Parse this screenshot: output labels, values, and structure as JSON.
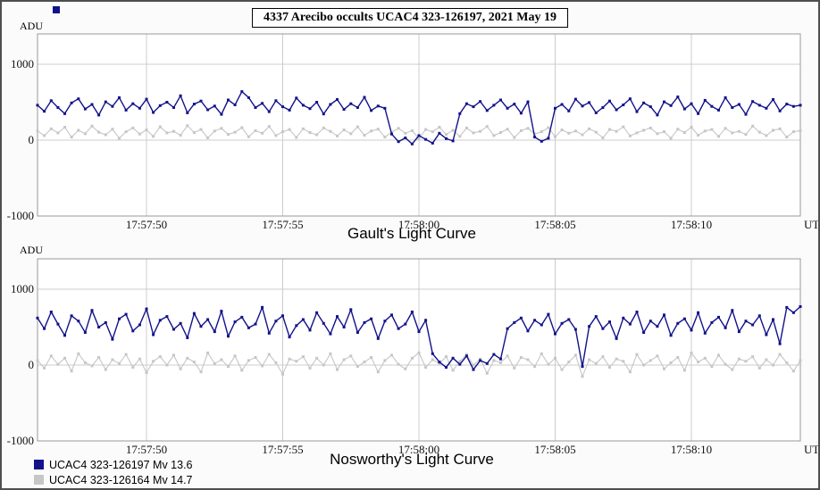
{
  "header": {
    "title": "4337 Arecibo occults UCAC4 323-126197, 2021 May 19"
  },
  "axis": {
    "y_label": "ADU",
    "x_unit": "UT",
    "y_ticks": [
      -1000,
      0,
      1000
    ],
    "x_tick_seconds": [
      4,
      9,
      14,
      19,
      24
    ],
    "x_tick_labels": [
      "17:57:50",
      "17:57:55",
      "17:58:00",
      "17:58:05",
      "17:58:10"
    ]
  },
  "legend": [
    {
      "label": "UCAC4 323-126197 Mv 13.6",
      "color": "#12128a"
    },
    {
      "label": "UCAC4 323-126164 Mv 14.7",
      "color": "#c6c6c6"
    }
  ],
  "chart_data": [
    {
      "type": "line",
      "title": "Gault's Light Curve",
      "xlabel": "UT",
      "ylabel": "ADU",
      "x_start_time": "17:57:46",
      "dt_seconds": 0.25,
      "x_range_seconds": [
        0,
        28
      ],
      "ylim": [
        -1000,
        1400
      ],
      "grid": true,
      "series": [
        {
          "name": "UCAC4 323-126197",
          "color": "#12128a",
          "values": [
            460,
            380,
            520,
            430,
            350,
            490,
            545,
            410,
            470,
            330,
            505,
            445,
            560,
            395,
            480,
            420,
            540,
            365,
            455,
            500,
            430,
            585,
            360,
            475,
            515,
            400,
            450,
            340,
            530,
            465,
            640,
            560,
            430,
            485,
            375,
            520,
            440,
            395,
            555,
            460,
            415,
            500,
            345,
            470,
            535,
            405,
            480,
            430,
            565,
            390,
            450,
            420,
            80,
            -20,
            30,
            -50,
            60,
            10,
            -40,
            90,
            20,
            -10,
            350,
            480,
            440,
            510,
            390,
            460,
            530,
            420,
            475,
            355,
            505,
            40,
            -15,
            25,
            420,
            470,
            385,
            540,
            450,
            495,
            360,
            430,
            515,
            400,
            465,
            545,
            375,
            490,
            440,
            330,
            505,
            455,
            570,
            410,
            480,
            350,
            525,
            445,
            395,
            560,
            430,
            470,
            340,
            510,
            460,
            420,
            535,
            385,
            475,
            445,
            460
          ]
        },
        {
          "name": "UCAC4 323-126164",
          "color": "#c6c6c6",
          "values": [
            120,
            60,
            150,
            95,
            170,
            40,
            130,
            85,
            185,
            105,
            70,
            145,
            25,
            110,
            160,
            80,
            135,
            50,
            175,
            95,
            115,
            65,
            190,
            100,
            140,
            30,
            120,
            155,
            75,
            105,
            165,
            45,
            125,
            90,
            180,
            60,
            110,
            140,
            35,
            150,
            100,
            70,
            160,
            115,
            55,
            135,
            85,
            175,
            65,
            120,
            145,
            40,
            105,
            155,
            90,
            125,
            20,
            140,
            110,
            170,
            75,
            130,
            50,
            160,
            95,
            115,
            180,
            60,
            100,
            145,
            35,
            125,
            155,
            80,
            110,
            165,
            45,
            135,
            90,
            120,
            70,
            150,
            105,
            30,
            140,
            115,
            175,
            55,
            95,
            130,
            160,
            85,
            110,
            25,
            145,
            100,
            170,
            65,
            120,
            140,
            50,
            155,
            95,
            115,
            75,
            185,
            105,
            60,
            130,
            150,
            40,
            110,
            125
          ]
        }
      ]
    },
    {
      "type": "line",
      "title": "Nosworthy's Light Curve",
      "xlabel": "UT",
      "ylabel": "ADU",
      "x_start_time": "17:57:46",
      "dt_seconds": 0.25,
      "x_range_seconds": [
        0,
        28
      ],
      "ylim": [
        -1000,
        1400
      ],
      "grid": true,
      "series": [
        {
          "name": "UCAC4 323-126197",
          "color": "#12128a",
          "values": [
            620,
            480,
            700,
            540,
            390,
            650,
            580,
            430,
            720,
            500,
            560,
            340,
            610,
            670,
            450,
            530,
            740,
            400,
            590,
            640,
            470,
            550,
            360,
            680,
            510,
            600,
            440,
            710,
            380,
            570,
            630,
            490,
            540,
            760,
            420,
            580,
            650,
            370,
            520,
            600,
            460,
            690,
            550,
            410,
            640,
            500,
            730,
            430,
            560,
            610,
            350,
            580,
            660,
            480,
            540,
            700,
            440,
            590,
            150,
            40,
            -30,
            90,
            10,
            120,
            -60,
            60,
            20,
            140,
            80,
            480,
            560,
            620,
            450,
            590,
            530,
            670,
            410,
            550,
            600,
            470,
            -20,
            510,
            640,
            480,
            570,
            350,
            620,
            540,
            700,
            430,
            580,
            510,
            660,
            390,
            550,
            610,
            460,
            690,
            420,
            560,
            630,
            490,
            720,
            440,
            580,
            530,
            650,
            400,
            600,
            280,
            760,
            690,
            770
          ]
        },
        {
          "name": "UCAC4 323-126164",
          "color": "#c6c6c6",
          "values": [
            60,
            -40,
            120,
            10,
            90,
            -80,
            150,
            30,
            -10,
            100,
            -60,
            70,
            20,
            140,
            -30,
            80,
            -100,
            50,
            110,
            0,
            130,
            -50,
            90,
            40,
            -90,
            160,
            20,
            70,
            -20,
            120,
            -70,
            60,
            100,
            -10,
            140,
            30,
            -120,
            80,
            50,
            110,
            -40,
            90,
            0,
            150,
            -60,
            70,
            120,
            -20,
            40,
            100,
            -90,
            60,
            130,
            10,
            -50,
            90,
            160,
            -30,
            70,
            20,
            110,
            -70,
            50,
            140,
            0,
            80,
            -110,
            60,
            30,
            120,
            -40,
            100,
            70,
            -20,
            150,
            10,
            90,
            -60,
            40,
            130,
            -150,
            70,
            20,
            110,
            -30,
            80,
            50,
            -90,
            140,
            0,
            60,
            120,
            -50,
            30,
            100,
            -70,
            160,
            40,
            90,
            -20,
            130,
            10,
            -60,
            80,
            50,
            110,
            -40,
            70,
            0,
            140,
            30,
            -80,
            60
          ]
        }
      ]
    }
  ]
}
